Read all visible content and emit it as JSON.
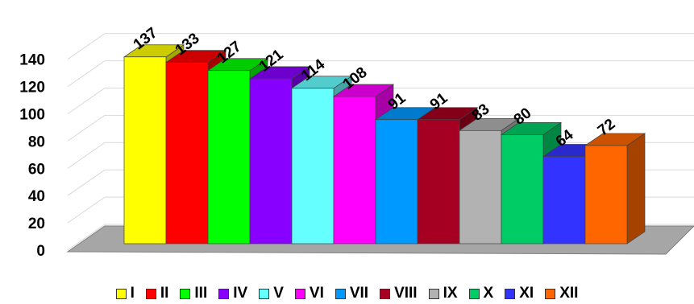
{
  "chart_data": {
    "type": "bar",
    "title": "",
    "xlabel": "",
    "ylabel": "",
    "ylim": [
      0,
      140
    ],
    "yticks": [
      0,
      20,
      40,
      60,
      80,
      100,
      120,
      140
    ],
    "grid": true,
    "style": "3d-column",
    "legend_position": "bottom",
    "categories": [
      "I",
      "II",
      "III",
      "IV",
      "V",
      "VI",
      "VII",
      "VIII",
      "IX",
      "X",
      "XI",
      "XII"
    ],
    "values": [
      137,
      133,
      127,
      121,
      114,
      108,
      91,
      91,
      83,
      80,
      64,
      72
    ],
    "colors": [
      "#ffff00",
      "#ff0000",
      "#00ff00",
      "#8800ff",
      "#66ffff",
      "#ff00ff",
      "#0099ff",
      "#a50021",
      "#b2b2b2",
      "#00cc66",
      "#3333ff",
      "#ff6600"
    ],
    "floor_color": "#a6a6a6",
    "grid_color": "#d9d9d9"
  }
}
